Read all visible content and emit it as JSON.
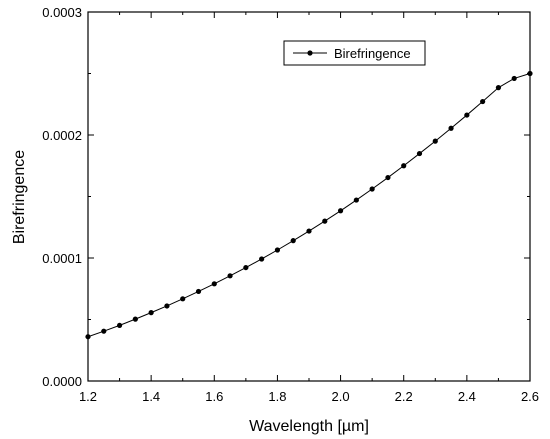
{
  "chart_data": {
    "type": "line",
    "title": "",
    "xlabel": "Wavelength [µm]",
    "ylabel": "Birefringence",
    "xlim": [
      1.2,
      2.6
    ],
    "ylim": [
      0.0,
      0.0003
    ],
    "x_ticks": [
      1.2,
      1.4,
      1.6,
      1.8,
      2.0,
      2.2,
      2.4,
      2.6
    ],
    "x_tick_labels": [
      "1.2",
      "1.4",
      "1.6",
      "1.8",
      "2.0",
      "2.2",
      "2.4",
      "2.6"
    ],
    "y_ticks": [
      0.0,
      0.0001,
      0.0002,
      0.0003
    ],
    "y_tick_labels": [
      "0.0000",
      "0.0001",
      "0.0002",
      "0.0003"
    ],
    "grid": false,
    "legend_position": "top-center",
    "series": [
      {
        "name": "Birefringence",
        "color": "#000000",
        "marker": "circle",
        "x": [
          1.2,
          1.25,
          1.3,
          1.35,
          1.4,
          1.45,
          1.5,
          1.55,
          1.6,
          1.65,
          1.7,
          1.75,
          1.8,
          1.85,
          1.9,
          1.95,
          2.0,
          2.05,
          2.1,
          2.15,
          2.2,
          2.25,
          2.3,
          2.35,
          2.4,
          2.45,
          2.5,
          2.55,
          2.6
        ],
        "y": [
          3.6e-05,
          4.05e-05,
          4.52e-05,
          5.03e-05,
          5.56e-05,
          6.1e-05,
          6.68e-05,
          7.28e-05,
          7.9e-05,
          8.55e-05,
          9.22e-05,
          9.92e-05,
          0.0001065,
          0.0001141,
          0.0001219,
          0.00013,
          0.0001384,
          0.0001471,
          0.0001561,
          0.0001654,
          0.000175,
          0.0001849,
          0.000195,
          0.0002055,
          0.0002162,
          0.0002272,
          0.0002385,
          0.000246,
          0.00025
        ]
      }
    ]
  }
}
